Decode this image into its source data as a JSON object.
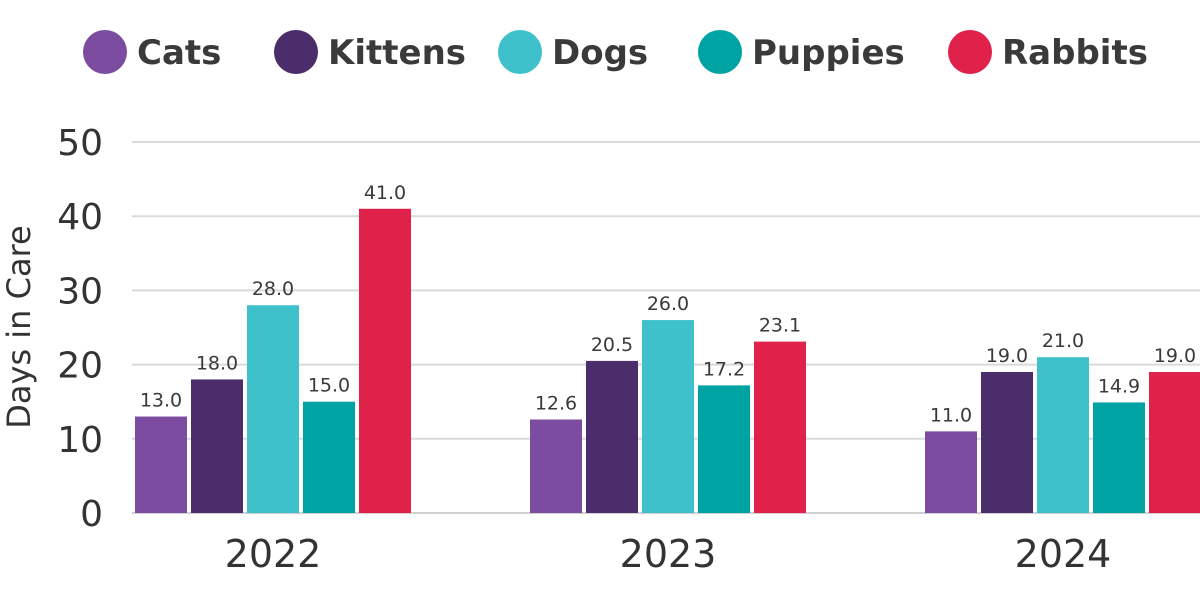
{
  "chart_data": {
    "type": "bar",
    "categories": [
      "2022",
      "2023",
      "2024"
    ],
    "series": [
      {
        "name": "Cats",
        "color": "#7b4ca0",
        "values": [
          13.0,
          12.6,
          11.0
        ]
      },
      {
        "name": "Kittens",
        "color": "#4a2d6a",
        "values": [
          18.0,
          20.5,
          19.0
        ]
      },
      {
        "name": "Dogs",
        "color": "#3fc1cb",
        "values": [
          28.0,
          26.0,
          21.0
        ]
      },
      {
        "name": "Puppies",
        "color": "#00a3a3",
        "values": [
          15.0,
          17.2,
          14.9
        ]
      },
      {
        "name": "Rabbits",
        "color": "#e0224a",
        "values": [
          41.0,
          23.1,
          19.0
        ]
      }
    ],
    "ylabel": "Days in Care",
    "xlabel": "",
    "ylim": [
      0,
      50
    ],
    "yticks": [
      0,
      10,
      20,
      30,
      40,
      50
    ],
    "grid": true,
    "legend_position": "top",
    "data_label_format": "one-decimal"
  }
}
